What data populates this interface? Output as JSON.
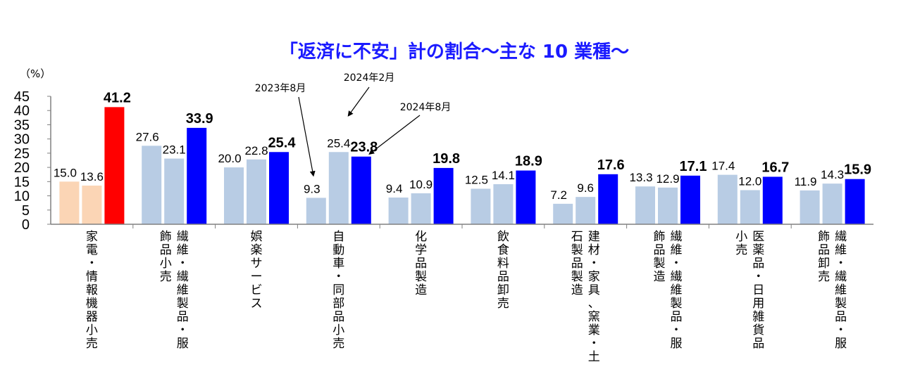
{
  "chart_data": {
    "type": "bar",
    "title": "「返済に不安」計の割合～主な 10 業種～",
    "unit_label": "（%）",
    "ylim": [
      0,
      45
    ],
    "yticks": [
      0,
      5,
      10,
      15,
      20,
      25,
      30,
      35,
      40,
      45
    ],
    "series": [
      {
        "name": "2023年8月",
        "values": [
          15.0,
          27.6,
          20.0,
          9.3,
          9.4,
          12.5,
          7.2,
          13.3,
          17.4,
          11.9
        ]
      },
      {
        "name": "2024年2月",
        "values": [
          13.6,
          23.1,
          22.8,
          25.4,
          10.9,
          14.1,
          9.6,
          12.9,
          12.0,
          14.3
        ]
      },
      {
        "name": "2024年8月",
        "values": [
          41.2,
          33.9,
          25.4,
          23.8,
          19.8,
          18.9,
          17.6,
          17.1,
          16.7,
          15.9
        ]
      }
    ],
    "categories": [
      {
        "lines": [
          "家電・情報機器小売"
        ]
      },
      {
        "lines": [
          "繊維・繊維製品・服",
          "飾品小売"
        ]
      },
      {
        "lines": [
          "娯楽サービス"
        ]
      },
      {
        "lines": [
          "自動車・同部品小売"
        ]
      },
      {
        "lines": [
          "化学品製造"
        ]
      },
      {
        "lines": [
          "飲食料品卸売"
        ]
      },
      {
        "lines": [
          "建材・家具、窯業・土",
          "石製品製造"
        ]
      },
      {
        "lines": [
          "繊維・繊維製品・服",
          "飾品製造"
        ]
      },
      {
        "lines": [
          "医薬品・日用雑貨品",
          "小売"
        ]
      },
      {
        "lines": [
          "繊維・繊維製品・服",
          "飾品卸売"
        ]
      }
    ],
    "labels": {
      "s1": [
        "15.0",
        "27.6",
        "20.0",
        "9.3",
        "9.4",
        "12.5",
        "7.2",
        "13.3",
        "17.4",
        "11.9"
      ],
      "s2": [
        "13.6",
        "23.1",
        "22.8",
        "25.4",
        "10.9",
        "14.1",
        "9.6",
        "12.9",
        "12.0",
        "14.3"
      ],
      "s3": [
        "41.2",
        "33.9",
        "25.4",
        "23.8",
        "19.8",
        "18.9",
        "17.6",
        "17.1",
        "16.7",
        "15.9"
      ]
    },
    "annotations": [
      "2023年8月",
      "2024年2月",
      "2024年8月"
    ],
    "legend": "none",
    "grid": false
  },
  "colors": {
    "title": "#1a1aff",
    "s1_first": "#fbd5b5",
    "s2_first": "#fbd5b5",
    "s3_first": "#ff0000",
    "s1": "#b8cce4",
    "s2": "#b8cce4",
    "s3": "#0000ff",
    "axis": "#808080"
  }
}
